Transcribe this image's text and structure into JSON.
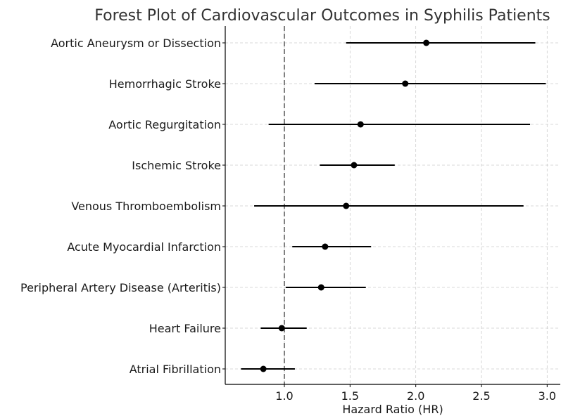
{
  "chart_data": {
    "type": "forest",
    "title": "Forest Plot of Cardiovascular Outcomes in Syphilis Patients",
    "xlabel": "Hazard Ratio (HR)",
    "ylabel": "",
    "xlim": [
      0.55,
      3.1
    ],
    "xticks": [
      1.0,
      1.5,
      2.0,
      2.5,
      3.0
    ],
    "xtick_labels": [
      "1.0",
      "1.5",
      "2.0",
      "2.5",
      "3.0"
    ],
    "reference_line": 1.0,
    "grid": true,
    "outcomes": [
      {
        "label": "Aortic Aneurysm or Dissection",
        "hr": 2.08,
        "lower": 1.47,
        "upper": 2.91
      },
      {
        "label": "Hemorrhagic Stroke",
        "hr": 1.92,
        "lower": 1.23,
        "upper": 2.99
      },
      {
        "label": "Aortic Regurgitation",
        "hr": 1.58,
        "lower": 0.88,
        "upper": 2.87
      },
      {
        "label": "Ischemic Stroke",
        "hr": 1.53,
        "lower": 1.27,
        "upper": 1.84
      },
      {
        "label": "Venous Thromboembolism",
        "hr": 1.47,
        "lower": 0.77,
        "upper": 2.82
      },
      {
        "label": "Acute Myocardial Infarction",
        "hr": 1.31,
        "lower": 1.06,
        "upper": 1.66
      },
      {
        "label": "Peripheral Artery Disease (Arteritis)",
        "hr": 1.28,
        "lower": 1.01,
        "upper": 1.62
      },
      {
        "label": "Heart Failure",
        "hr": 0.98,
        "lower": 0.82,
        "upper": 1.17
      },
      {
        "label": "Atrial Fibrillation",
        "hr": 0.84,
        "lower": 0.67,
        "upper": 1.08
      }
    ]
  }
}
